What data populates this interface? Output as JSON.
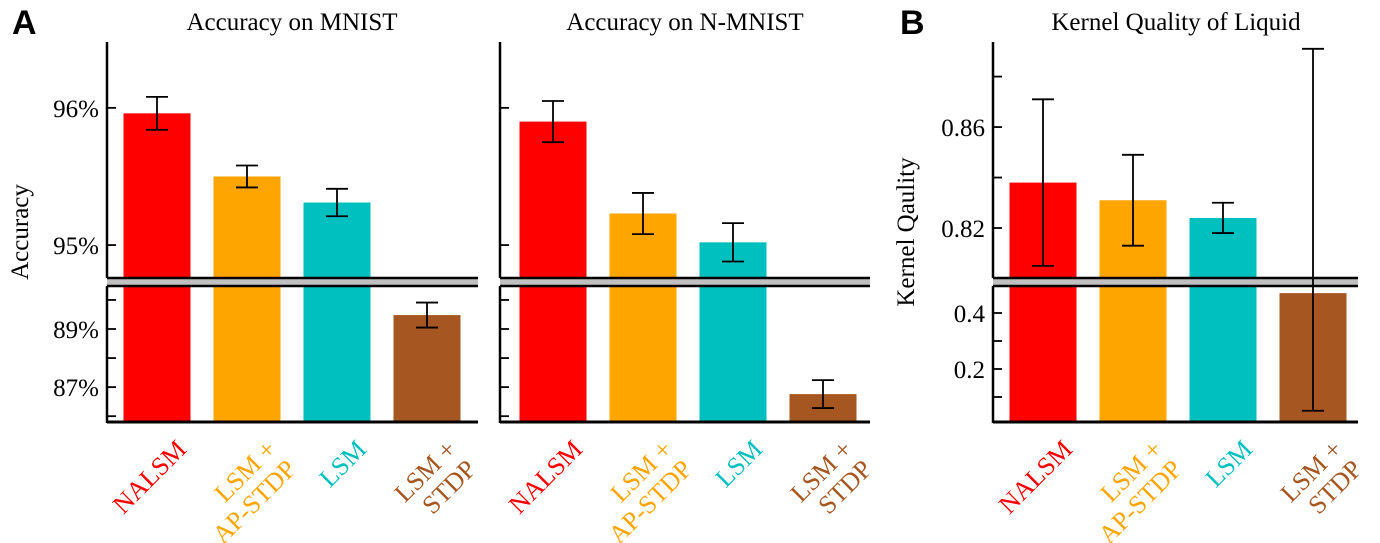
{
  "chart_data": [
    {
      "panel_letter": "A",
      "type": "bar",
      "title": "Accuracy on MNIST",
      "ylabel": "Accuracy",
      "broken_axis": true,
      "ylim_upper": [
        94.76,
        96.48
      ],
      "ylim_lower": [
        85.8,
        90.48
      ],
      "yticks_upper": [
        95,
        96
      ],
      "ytick_labels_upper": [
        "95%",
        "96%"
      ],
      "yticks_lower": [
        86,
        87,
        88,
        89,
        90
      ],
      "ytick_labels_lower": {
        "87": "87%",
        "89": "89%"
      },
      "categories": [
        [
          "NALSM"
        ],
        [
          "LSM +",
          "AP-STDP"
        ],
        [
          "LSM"
        ],
        [
          "LSM +",
          "STDP"
        ]
      ],
      "values": [
        95.96,
        95.5,
        95.31,
        89.48
      ],
      "errors": [
        0.12,
        0.08,
        0.1,
        0.43
      ],
      "colors": [
        "#ff0000",
        "#ffa500",
        "#00bfbf",
        "#a65620"
      ]
    },
    {
      "type": "bar",
      "title": "Accuracy on N-MNIST",
      "ylabel": "",
      "broken_axis": true,
      "ylim_upper": [
        94.76,
        96.48
      ],
      "ylim_lower": [
        85.8,
        90.48
      ],
      "yticks_upper": [
        95,
        96
      ],
      "ytick_labels_upper": [
        "",
        ""
      ],
      "yticks_lower": [
        86,
        87,
        88,
        89,
        90
      ],
      "ytick_labels_lower": {},
      "categories": [
        [
          "NALSM"
        ],
        [
          "LSM +",
          "AP-STDP"
        ],
        [
          "LSM"
        ],
        [
          "LSM +",
          "STDP"
        ]
      ],
      "values": [
        95.9,
        95.23,
        95.02,
        86.76
      ],
      "errors": [
        0.15,
        0.15,
        0.14,
        0.48
      ],
      "colors": [
        "#ff0000",
        "#ffa500",
        "#00bfbf",
        "#a65620"
      ]
    },
    {
      "panel_letter": "B",
      "type": "bar",
      "title": "Kernel Quality of Liquid",
      "ylabel": "Kernel Qaulity",
      "broken_axis": true,
      "ylim_upper": [
        0.8002,
        0.8937
      ],
      "ylim_lower": [
        0.0107,
        0.4964
      ],
      "yticks_upper": [
        0.82,
        0.84,
        0.86,
        0.88
      ],
      "ytick_labels_upper": [
        "0.82",
        "",
        "0.86",
        ""
      ],
      "yticks_lower": [
        0.1,
        0.2,
        0.3,
        0.4
      ],
      "ytick_labels_lower": {
        "0.2": "0.2",
        "0.4": "0.4"
      },
      "categories": [
        [
          "NALSM"
        ],
        [
          "LSM +",
          "AP-STDP"
        ],
        [
          "LSM"
        ],
        [
          "LSM +",
          "STDP"
        ]
      ],
      "values": [
        0.838,
        0.831,
        0.824,
        0.471
      ],
      "errors": [
        0.033,
        0.018,
        0.006,
        0.42
      ],
      "colors": [
        "#ff0000",
        "#ffa500",
        "#00bfbf",
        "#a65620"
      ]
    }
  ]
}
